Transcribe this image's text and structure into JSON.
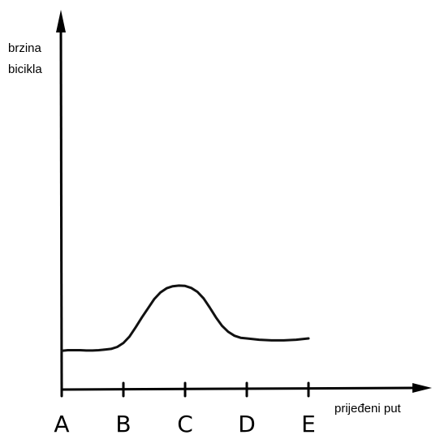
{
  "chart_data": {
    "type": "line",
    "title": "",
    "ylabel_lines": [
      "brzina",
      "bicikla"
    ],
    "xlabel": "prijeđeni put",
    "categories": [
      "A",
      "B",
      "C",
      "D",
      "E"
    ],
    "x": [
      0,
      0.1,
      0.2,
      0.3,
      0.4,
      0.5,
      0.6,
      0.7,
      0.8,
      0.9,
      1.0,
      1.1,
      1.2,
      1.3,
      1.4,
      1.5,
      1.6,
      1.7,
      1.8,
      1.9,
      2.0,
      2.1,
      2.2,
      2.3,
      2.4,
      2.5,
      2.6,
      2.7,
      2.8,
      2.9,
      3.0,
      3.2,
      3.4,
      3.6,
      3.8,
      4.0
    ],
    "y": [
      1.18,
      1.2,
      1.2,
      1.2,
      1.19,
      1.19,
      1.2,
      1.22,
      1.24,
      1.3,
      1.42,
      1.62,
      1.9,
      2.2,
      2.48,
      2.76,
      2.96,
      3.09,
      3.15,
      3.17,
      3.16,
      3.1,
      2.98,
      2.78,
      2.5,
      2.2,
      1.94,
      1.76,
      1.64,
      1.58,
      1.56,
      1.52,
      1.5,
      1.5,
      1.52,
      1.56
    ],
    "xlim": [
      0,
      5.8
    ],
    "ylim": [
      0,
      11.3
    ],
    "grid": false,
    "axis_color": "#000000",
    "line_color": "#111111"
  }
}
